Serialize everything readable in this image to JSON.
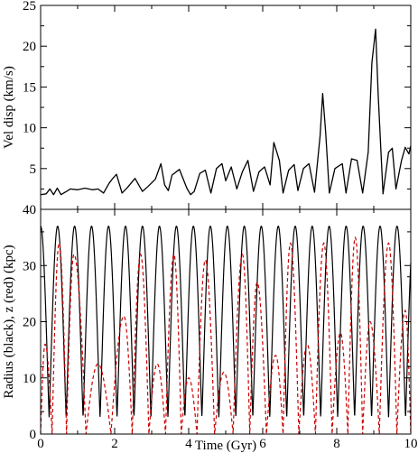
{
  "chart_data": [
    {
      "type": "line",
      "ylabel": "Vel disp (km/s)",
      "xlim": [
        0,
        10
      ],
      "ylim": [
        0,
        25
      ],
      "x_ticks": [
        "0",
        "2",
        "4",
        "6",
        "8",
        "10"
      ],
      "y_ticks": [
        "5",
        "10",
        "15",
        "20",
        "25"
      ],
      "grid": false,
      "series": [
        {
          "color": "#000000",
          "style": "solid",
          "x": [
            0.0,
            0.15,
            0.25,
            0.35,
            0.45,
            0.55,
            0.7,
            0.8,
            1.0,
            1.2,
            1.4,
            1.55,
            1.7,
            1.85,
            1.95,
            2.05,
            2.2,
            2.35,
            2.55,
            2.75,
            2.9,
            3.1,
            3.25,
            3.35,
            3.45,
            3.55,
            3.75,
            3.95,
            4.05,
            4.15,
            4.3,
            4.45,
            4.6,
            4.75,
            4.9,
            5.0,
            5.15,
            5.3,
            5.45,
            5.6,
            5.75,
            5.9,
            6.05,
            6.2,
            6.3,
            6.45,
            6.55,
            6.7,
            6.85,
            6.95,
            7.1,
            7.25,
            7.4,
            7.55,
            7.62,
            7.7,
            7.8,
            7.95,
            8.15,
            8.25,
            8.4,
            8.55,
            8.7,
            8.85,
            8.95,
            9.05,
            9.12,
            9.25,
            9.4,
            9.5,
            9.6,
            9.75,
            9.85,
            9.95,
            10.0
          ],
          "y": [
            1.8,
            1.9,
            2.5,
            1.8,
            2.6,
            1.8,
            2.2,
            2.5,
            2.4,
            2.6,
            2.4,
            2.5,
            2.0,
            3.2,
            3.8,
            4.3,
            2.0,
            2.7,
            3.8,
            2.2,
            2.8,
            3.7,
            5.6,
            3.0,
            2.3,
            4.2,
            4.9,
            2.6,
            1.8,
            2.2,
            4.4,
            4.8,
            2.0,
            5.0,
            5.6,
            3.5,
            5.2,
            2.5,
            4.6,
            6.0,
            2.2,
            4.6,
            5.2,
            3.0,
            8.2,
            6.0,
            2.0,
            4.8,
            5.5,
            2.3,
            5.0,
            5.6,
            2.1,
            9.0,
            14.2,
            9.5,
            2.0,
            5.0,
            5.6,
            2.0,
            6.2,
            6.0,
            2.0,
            7.0,
            18.0,
            22.1,
            14.0,
            1.9,
            7.0,
            7.5,
            2.5,
            6.0,
            7.6,
            6.8,
            7.8
          ]
        }
      ]
    },
    {
      "type": "line",
      "xlabel": "Time (Gyr)",
      "ylabel": "Radius (black), z (red) (kpc)",
      "xlim": [
        0,
        10
      ],
      "ylim": [
        0,
        40
      ],
      "x_ticks": [
        "0",
        "2",
        "4",
        "6",
        "8",
        "10"
      ],
      "y_ticks": [
        "0",
        "10",
        "20",
        "30",
        "40"
      ],
      "grid": false,
      "series": [
        {
          "color": "#000000",
          "style": "solid",
          "oscillation": {
            "min_radius": 3.0,
            "max_radius": 37.0,
            "period_gyr": 0.4585,
            "first_minimum_gyr": 0.23
          }
        },
        {
          "color": "#cc0000",
          "style": "dashed",
          "peaks_x": [
            0.12,
            0.5,
            0.9,
            1.55,
            2.25,
            2.7,
            3.15,
            3.6,
            4.0,
            4.45,
            4.95,
            5.45,
            5.85,
            6.35,
            6.75,
            7.2,
            7.65,
            8.1,
            8.5,
            8.9,
            9.4,
            9.85
          ],
          "peaks_y": [
            16.0,
            34.0,
            32.0,
            12.5,
            21.0,
            32.0,
            12.5,
            32.0,
            10.0,
            31.0,
            11.0,
            32.0,
            27.0,
            14.0,
            34.0,
            16.0,
            34.0,
            18.0,
            35.0,
            20.0,
            34.0,
            22.0
          ]
        }
      ]
    }
  ]
}
